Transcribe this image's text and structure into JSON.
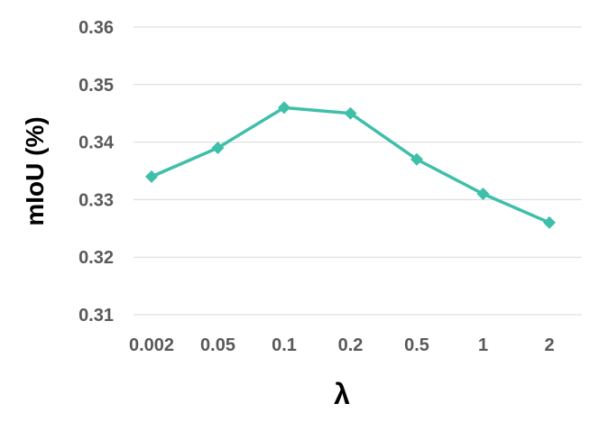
{
  "chart_data": {
    "type": "line",
    "title": "",
    "xlabel": "λ",
    "ylabel": "mIoU (%)",
    "categories": [
      "0.002",
      "0.05",
      "0.1",
      "0.2",
      "0.5",
      "1",
      "2"
    ],
    "series": [
      {
        "values": [
          0.334,
          0.339,
          0.346,
          0.345,
          0.337,
          0.331,
          0.326
        ],
        "color": "#3dbfaa",
        "marker": "diamond"
      }
    ],
    "ylim": [
      0.31,
      0.36
    ],
    "yticks": [
      "0.31",
      "0.32",
      "0.33",
      "0.34",
      "0.35",
      "0.36"
    ],
    "grid": "horizontal",
    "legend": "none"
  }
}
